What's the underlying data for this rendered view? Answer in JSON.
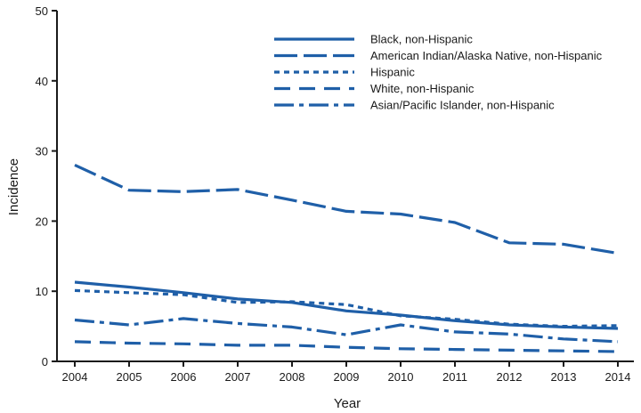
{
  "chart_data": {
    "type": "line",
    "xlabel": "Year",
    "ylabel": "Incidence",
    "x": [
      2004,
      2005,
      2006,
      2007,
      2008,
      2009,
      2010,
      2011,
      2012,
      2013,
      2014
    ],
    "x_ticks": [
      "2004",
      "2005",
      "2006",
      "2007",
      "2008",
      "2009",
      "2010",
      "2011",
      "2012",
      "2013",
      "2014"
    ],
    "ylim": [
      0,
      50
    ],
    "y_ticks": [
      "0",
      "10",
      "20",
      "30",
      "40",
      "50"
    ],
    "grid": false,
    "legend_position": "top-right",
    "color": "#1f5fa8",
    "series": [
      {
        "name": "Black, non-Hispanic",
        "style": "solid",
        "values": [
          11.3,
          10.6,
          9.8,
          8.9,
          8.4,
          7.2,
          6.6,
          5.8,
          5.2,
          4.9,
          4.7
        ]
      },
      {
        "name": "American Indian/Alaska Native, non-Hispanic",
        "style": "long-dash",
        "values": [
          28.0,
          24.4,
          24.2,
          24.5,
          23.0,
          21.4,
          21.0,
          19.8,
          16.9,
          16.7,
          15.4
        ]
      },
      {
        "name": "Hispanic",
        "style": "dotted",
        "values": [
          10.1,
          9.8,
          9.5,
          8.4,
          8.5,
          8.1,
          6.5,
          6.0,
          5.3,
          5.0,
          5.1
        ]
      },
      {
        "name": "White, non-Hispanic",
        "style": "dash",
        "values": [
          2.8,
          2.6,
          2.5,
          2.3,
          2.3,
          2.0,
          1.8,
          1.7,
          1.6,
          1.5,
          1.4
        ]
      },
      {
        "name": "Asian/Pacific Islander, non-Hispanic",
        "style": "dash-dot",
        "values": [
          5.9,
          5.2,
          6.1,
          5.4,
          4.9,
          3.8,
          5.2,
          4.2,
          3.9,
          3.2,
          2.8
        ]
      }
    ]
  }
}
